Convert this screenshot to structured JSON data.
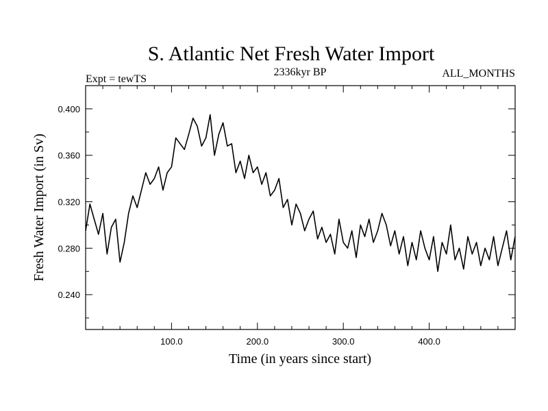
{
  "chart_data": {
    "type": "line",
    "title": "S. Atlantic Net Fresh Water Import",
    "subtitle_left": "Expt = tewTS",
    "subtitle_center": "2336kyr BP",
    "subtitle_right": "ALL_MONTHS",
    "xlabel": "Time (in years since start)",
    "ylabel": "Fresh Water Import (in Sv)",
    "xlim": [
      0,
      500
    ],
    "ylim": [
      0.21,
      0.42
    ],
    "x_ticks": [
      100,
      200,
      300,
      400
    ],
    "x_tick_labels": [
      "100.0",
      "200.0",
      "300.0",
      "400.0"
    ],
    "y_ticks": [
      0.24,
      0.28,
      0.32,
      0.36,
      0.4
    ],
    "y_tick_labels": [
      "0.240",
      "0.280",
      "0.320",
      "0.360",
      "0.400"
    ],
    "series": [
      {
        "name": "fresh_water_import",
        "x": [
          0,
          5,
          10,
          15,
          20,
          25,
          30,
          35,
          40,
          45,
          50,
          55,
          60,
          65,
          70,
          75,
          80,
          85,
          90,
          95,
          100,
          105,
          110,
          115,
          120,
          125,
          130,
          135,
          140,
          145,
          150,
          155,
          160,
          165,
          170,
          175,
          180,
          185,
          190,
          195,
          200,
          205,
          210,
          215,
          220,
          225,
          230,
          235,
          240,
          245,
          250,
          255,
          260,
          265,
          270,
          275,
          280,
          285,
          290,
          295,
          300,
          305,
          310,
          315,
          320,
          325,
          330,
          335,
          340,
          345,
          350,
          355,
          360,
          365,
          370,
          375,
          380,
          385,
          390,
          395,
          400,
          405,
          410,
          415,
          420,
          425,
          430,
          435,
          440,
          445,
          450,
          455,
          460,
          465,
          470,
          475,
          480,
          485,
          490,
          495,
          500
        ],
        "values": [
          0.295,
          0.318,
          0.305,
          0.292,
          0.31,
          0.275,
          0.298,
          0.305,
          0.268,
          0.285,
          0.31,
          0.325,
          0.315,
          0.33,
          0.345,
          0.335,
          0.34,
          0.35,
          0.33,
          0.345,
          0.35,
          0.375,
          0.37,
          0.365,
          0.378,
          0.392,
          0.385,
          0.368,
          0.375,
          0.395,
          0.36,
          0.378,
          0.388,
          0.368,
          0.37,
          0.345,
          0.355,
          0.34,
          0.36,
          0.345,
          0.35,
          0.335,
          0.345,
          0.325,
          0.33,
          0.34,
          0.315,
          0.322,
          0.3,
          0.318,
          0.31,
          0.295,
          0.305,
          0.312,
          0.288,
          0.298,
          0.285,
          0.292,
          0.275,
          0.305,
          0.285,
          0.28,
          0.295,
          0.272,
          0.3,
          0.29,
          0.305,
          0.285,
          0.295,
          0.31,
          0.3,
          0.282,
          0.295,
          0.275,
          0.29,
          0.265,
          0.285,
          0.27,
          0.295,
          0.28,
          0.27,
          0.29,
          0.26,
          0.285,
          0.275,
          0.3,
          0.27,
          0.28,
          0.262,
          0.29,
          0.275,
          0.285,
          0.265,
          0.28,
          0.27,
          0.29,
          0.265,
          0.28,
          0.295,
          0.27,
          0.29
        ]
      }
    ],
    "grid": false,
    "legend": "none"
  },
  "colors": {
    "line": "#000000",
    "background": "#ffffff"
  }
}
